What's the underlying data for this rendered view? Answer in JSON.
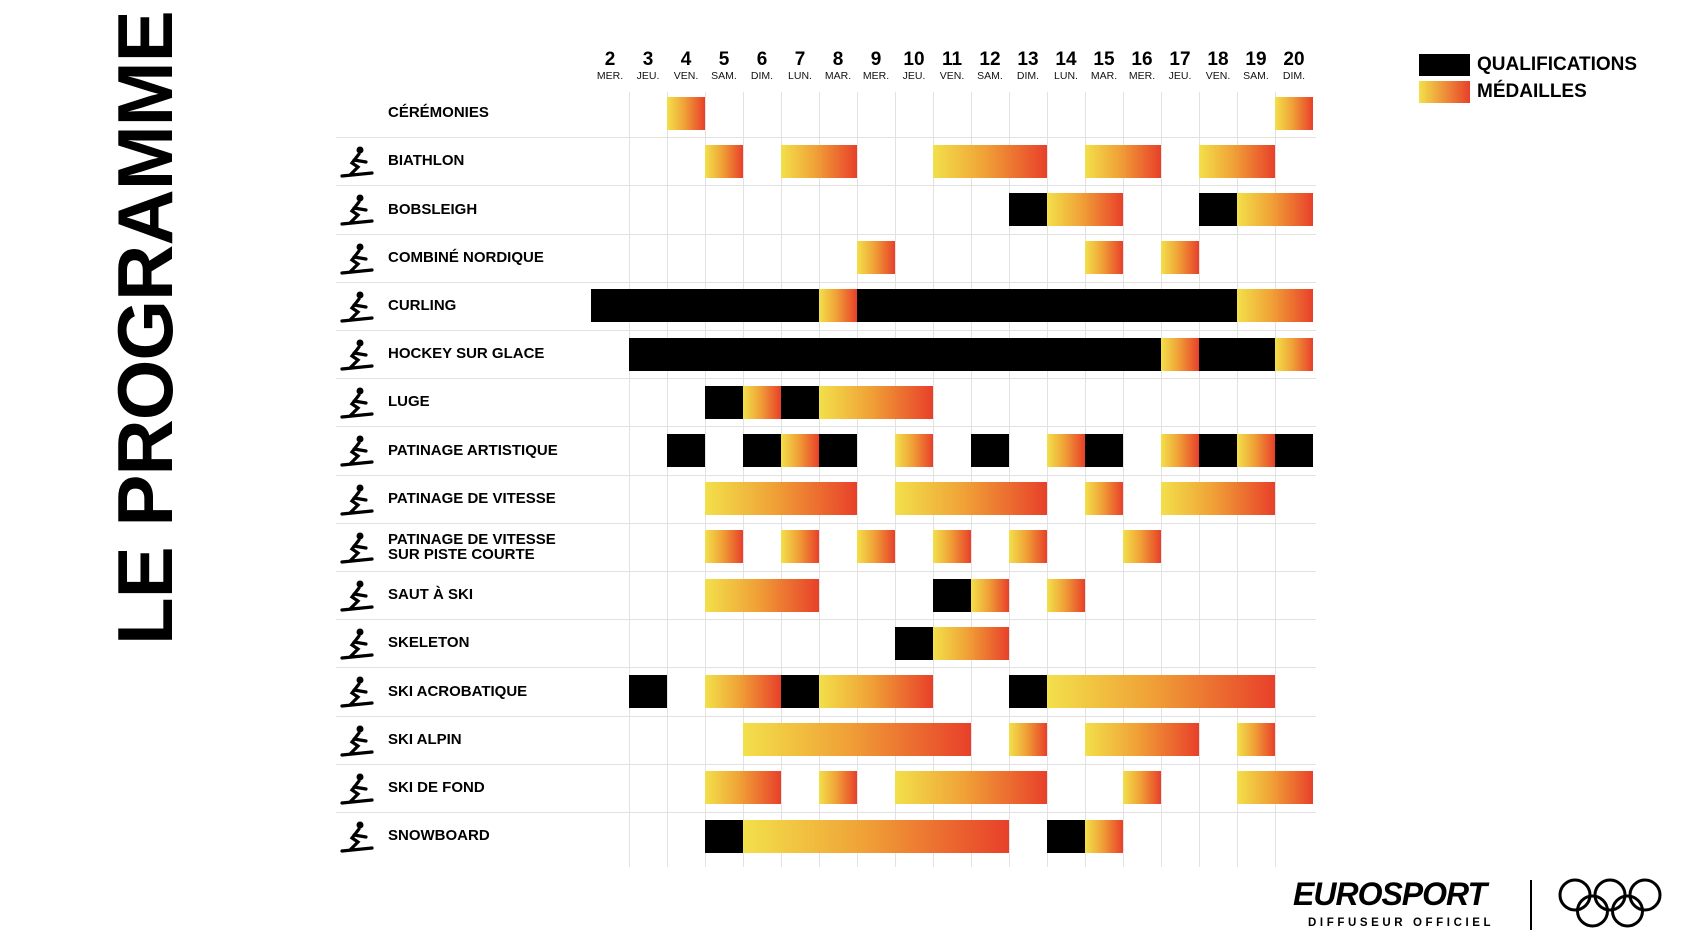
{
  "title": "LE PROGRAMME",
  "legend": {
    "qualifications": "QUALIFICATIONS",
    "medals": "MÉDAILLES"
  },
  "colors": {
    "qualification": "#000000",
    "medal_start": "#f2e04a",
    "medal_end": "#e8402a"
  },
  "branding": {
    "broadcaster": "EUROSPORT",
    "tagline": "DIFFUSEUR OFFICIEL",
    "rings": "olympic-rings"
  },
  "chart_data": {
    "type": "table",
    "title": "LE PROGRAMME",
    "days": [
      {
        "n": "2",
        "w": "MER."
      },
      {
        "n": "3",
        "w": "JEU."
      },
      {
        "n": "4",
        "w": "VEN."
      },
      {
        "n": "5",
        "w": "SAM."
      },
      {
        "n": "6",
        "w": "DIM."
      },
      {
        "n": "7",
        "w": "LUN."
      },
      {
        "n": "8",
        "w": "MAR."
      },
      {
        "n": "9",
        "w": "MER."
      },
      {
        "n": "10",
        "w": "JEU."
      },
      {
        "n": "11",
        "w": "VEN."
      },
      {
        "n": "12",
        "w": "SAM."
      },
      {
        "n": "13",
        "w": "DIM."
      },
      {
        "n": "14",
        "w": "LUN."
      },
      {
        "n": "15",
        "w": "MAR."
      },
      {
        "n": "16",
        "w": "MER."
      },
      {
        "n": "17",
        "w": "JEU."
      },
      {
        "n": "18",
        "w": "VEN."
      },
      {
        "n": "19",
        "w": "SAM."
      },
      {
        "n": "20",
        "w": "DIM."
      }
    ],
    "rows": [
      {
        "name": "CÉRÉMONIES",
        "icon": "none",
        "segments": [
          [
            "m",
            4,
            4
          ],
          [
            "m",
            20,
            20
          ]
        ]
      },
      {
        "name": "BIATHLON",
        "icon": "biathlon-icon",
        "segments": [
          [
            "m",
            5,
            5
          ],
          [
            "m",
            7,
            8
          ],
          [
            "m",
            11,
            13
          ],
          [
            "m",
            15,
            16
          ],
          [
            "m",
            18,
            19
          ]
        ]
      },
      {
        "name": "BOBSLEIGH",
        "icon": "bobsleigh-icon",
        "segments": [
          [
            "q",
            13,
            13
          ],
          [
            "m",
            14,
            15
          ],
          [
            "q",
            18,
            18
          ],
          [
            "m",
            19,
            20
          ]
        ]
      },
      {
        "name": "COMBINÉ NORDIQUE",
        "icon": "nordic-combined-icon",
        "segments": [
          [
            "m",
            9,
            9
          ],
          [
            "m",
            15,
            15
          ],
          [
            "m",
            17,
            17
          ]
        ]
      },
      {
        "name": "CURLING",
        "icon": "curling-icon",
        "segments": [
          [
            "q",
            2,
            7
          ],
          [
            "m",
            8,
            8
          ],
          [
            "q",
            9,
            18
          ],
          [
            "m",
            19,
            20
          ]
        ]
      },
      {
        "name": "HOCKEY SUR GLACE",
        "icon": "ice-hockey-icon",
        "segments": [
          [
            "q",
            3,
            16
          ],
          [
            "m",
            17,
            17
          ],
          [
            "q",
            18,
            19
          ],
          [
            "m",
            20,
            20
          ]
        ]
      },
      {
        "name": "LUGE",
        "icon": "luge-icon",
        "segments": [
          [
            "q",
            5,
            5
          ],
          [
            "m",
            6,
            6
          ],
          [
            "q",
            7,
            7
          ],
          [
            "m",
            8,
            10
          ]
        ]
      },
      {
        "name": "PATINAGE ARTISTIQUE",
        "icon": "figure-skating-icon",
        "segments": [
          [
            "q",
            4,
            4
          ],
          [
            "q",
            6,
            6
          ],
          [
            "m",
            7,
            7
          ],
          [
            "q",
            8,
            8
          ],
          [
            "m",
            10,
            10
          ],
          [
            "q",
            12,
            12
          ],
          [
            "m",
            14,
            14
          ],
          [
            "q",
            15,
            15
          ],
          [
            "m",
            17,
            17
          ],
          [
            "q",
            18,
            18
          ],
          [
            "m",
            19,
            19
          ],
          [
            "q",
            20,
            20
          ]
        ]
      },
      {
        "name": "PATINAGE DE VITESSE",
        "icon": "speed-skating-icon",
        "segments": [
          [
            "m",
            5,
            8
          ],
          [
            "m",
            10,
            13
          ],
          [
            "m",
            15,
            15
          ],
          [
            "m",
            17,
            19
          ]
        ]
      },
      {
        "name": "PATINAGE DE VITESSE\nSUR PISTE COURTE",
        "icon": "short-track-icon",
        "segments": [
          [
            "m",
            5,
            5
          ],
          [
            "m",
            7,
            7
          ],
          [
            "m",
            9,
            9
          ],
          [
            "m",
            11,
            11
          ],
          [
            "m",
            13,
            13
          ],
          [
            "m",
            16,
            16
          ]
        ]
      },
      {
        "name": "SAUT À SKI",
        "icon": "ski-jumping-icon",
        "segments": [
          [
            "m",
            5,
            7
          ],
          [
            "q",
            11,
            11
          ],
          [
            "m",
            12,
            12
          ],
          [
            "m",
            14,
            14
          ]
        ]
      },
      {
        "name": "SKELETON",
        "icon": "skeleton-icon",
        "segments": [
          [
            "q",
            10,
            10
          ],
          [
            "m",
            11,
            12
          ]
        ]
      },
      {
        "name": "SKI ACROBATIQUE",
        "icon": "freestyle-skiing-icon",
        "segments": [
          [
            "q",
            3,
            3
          ],
          [
            "m",
            5,
            6
          ],
          [
            "q",
            7,
            7
          ],
          [
            "m",
            8,
            10
          ],
          [
            "q",
            13,
            13
          ],
          [
            "m",
            14,
            19
          ]
        ]
      },
      {
        "name": "SKI ALPIN",
        "icon": "alpine-skiing-icon",
        "segments": [
          [
            "m",
            6,
            11
          ],
          [
            "m",
            13,
            13
          ],
          [
            "m",
            15,
            17
          ],
          [
            "m",
            19,
            19
          ]
        ]
      },
      {
        "name": "SKI DE FOND",
        "icon": "cross-country-icon",
        "segments": [
          [
            "m",
            5,
            6
          ],
          [
            "m",
            8,
            8
          ],
          [
            "m",
            10,
            13
          ],
          [
            "m",
            16,
            16
          ],
          [
            "m",
            19,
            20
          ]
        ]
      },
      {
        "name": "SNOWBOARD",
        "icon": "snowboard-icon",
        "segments": [
          [
            "q",
            5,
            5
          ],
          [
            "m",
            6,
            12
          ],
          [
            "q",
            14,
            14
          ],
          [
            "m",
            15,
            15
          ]
        ]
      }
    ]
  }
}
